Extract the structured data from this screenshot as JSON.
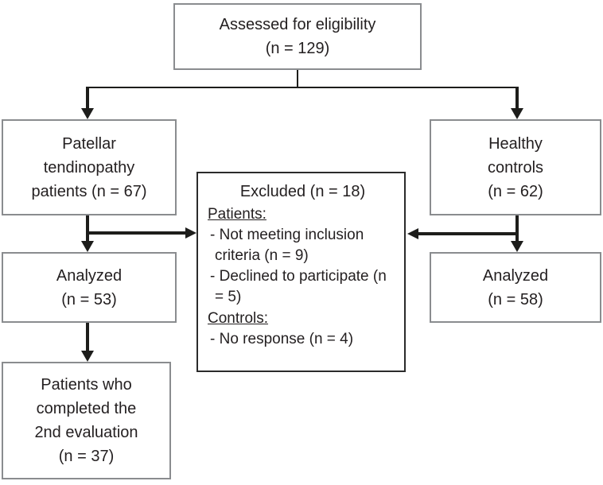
{
  "boxes": {
    "assessed": {
      "lines": [
        "Assessed for eligibility",
        "(n = 129)"
      ]
    },
    "patellar": {
      "lines": [
        "Patellar",
        "tendinopathy",
        "patients (n = 67)"
      ]
    },
    "healthy": {
      "lines": [
        "Healthy",
        "controls",
        "(n = 62)"
      ]
    },
    "excluded": {
      "title": "Excluded (n = 18)",
      "sections": [
        {
          "header": "Patients:",
          "items": [
            "- Not meeting inclusion criteria (n = 9)",
            "- Declined to participate (n = 5)"
          ]
        },
        {
          "header": "Controls:",
          "items": [
            "- No response (n = 4)"
          ]
        }
      ]
    },
    "analyzed_patients": {
      "lines": [
        "Analyzed",
        "(n = 53)"
      ]
    },
    "analyzed_controls": {
      "lines": [
        "Analyzed",
        "(n = 58)"
      ]
    },
    "completed": {
      "lines": [
        "Patients who",
        "completed the",
        "2nd evaluation",
        "(n = 37)"
      ]
    }
  },
  "colors": {
    "box_border": "#8a8c8f",
    "excluded_border": "#2b2b2b",
    "text": "#231f20",
    "arrow": "#1d1d1b",
    "background": "#ffffff"
  }
}
